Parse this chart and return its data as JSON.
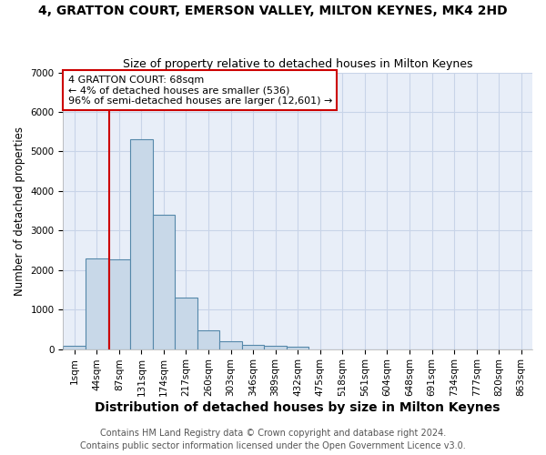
{
  "title": "4, GRATTON COURT, EMERSON VALLEY, MILTON KEYNES, MK4 2HD",
  "subtitle": "Size of property relative to detached houses in Milton Keynes",
  "xlabel": "Distribution of detached houses by size in Milton Keynes",
  "ylabel": "Number of detached properties",
  "footnote1": "Contains HM Land Registry data © Crown copyright and database right 2024.",
  "footnote2": "Contains public sector information licensed under the Open Government Licence v3.0.",
  "bin_labels": [
    "1sqm",
    "44sqm",
    "87sqm",
    "131sqm",
    "174sqm",
    "217sqm",
    "260sqm",
    "303sqm",
    "346sqm",
    "389sqm",
    "432sqm",
    "475sqm",
    "518sqm",
    "561sqm",
    "604sqm",
    "648sqm",
    "691sqm",
    "734sqm",
    "777sqm",
    "820sqm",
    "863sqm"
  ],
  "bar_values": [
    80,
    2300,
    2280,
    5300,
    3400,
    1300,
    470,
    190,
    100,
    80,
    50,
    0,
    0,
    0,
    0,
    0,
    0,
    0,
    0,
    0,
    0
  ],
  "bar_color": "#c8d8e8",
  "bar_edge_color": "#5588aa",
  "property_line_x": 1.55,
  "property_line_color": "#cc0000",
  "annotation_text": "4 GRATTON COURT: 68sqm\n← 4% of detached houses are smaller (536)\n96% of semi-detached houses are larger (12,601) →",
  "annotation_box_color": "#ffffff",
  "annotation_box_edge_color": "#cc0000",
  "ylim": [
    0,
    7000
  ],
  "bg_color": "#ffffff",
  "grid_color": "#c8d4e8",
  "title_fontsize": 10,
  "subtitle_fontsize": 9,
  "xlabel_fontsize": 10,
  "ylabel_fontsize": 8.5,
  "tick_fontsize": 7.5,
  "footnote_fontsize": 7
}
